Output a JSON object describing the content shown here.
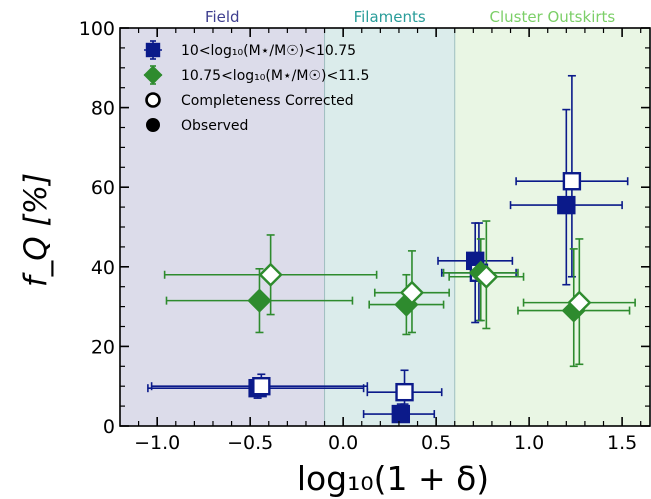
{
  "chart_data": {
    "type": "scatter",
    "xlabel": "log₁₀(1 + δ)",
    "ylabel": "f_Q [%]",
    "xlim": [
      -1.2,
      1.65
    ],
    "ylim": [
      0,
      100
    ],
    "xticks": [
      -1.0,
      -0.5,
      0.0,
      0.5,
      1.0,
      1.5
    ],
    "xtick_labels": [
      "−1.0",
      "−0.5",
      "0.0",
      "0.5",
      "1.0",
      "1.5"
    ],
    "yticks": [
      0,
      20,
      40,
      60,
      80,
      100
    ],
    "ytick_labels": [
      "0",
      "20",
      "40",
      "60",
      "80",
      "100"
    ],
    "regions": [
      {
        "label": "Field",
        "x0": -1.2,
        "x1": -0.1,
        "color": "#dcdcea",
        "label_color": "#3f3f8f"
      },
      {
        "label": "Filaments",
        "x0": -0.1,
        "x1": 0.6,
        "color": "#dbeceb",
        "label_color": "#2a9d9a"
      },
      {
        "label": "Cluster Outskirts",
        "x0": 0.6,
        "x1": 1.65,
        "color": "#e9f6e4",
        "label_color": "#7ccf68"
      }
    ],
    "series": [
      {
        "name": "10<log₁₀(M⋆/M☉)<10.75",
        "color": "#0b1a8a",
        "marker": "square",
        "observed": [
          {
            "x": -0.46,
            "y": 9.5,
            "xerr": [
              0.59,
              0.57
            ],
            "yerr": [
              2.5,
              2.5
            ]
          },
          {
            "x": 0.31,
            "y": 3.0,
            "xerr": [
              0.2,
              0.18
            ],
            "yerr": [
              1.8,
              2.5
            ]
          },
          {
            "x": 0.71,
            "y": 41.5,
            "xerr": [
              0.2,
              0.2
            ],
            "yerr": [
              15.5,
              9.5
            ]
          },
          {
            "x": 1.2,
            "y": 55.5,
            "xerr": [
              0.3,
              0.3
            ],
            "yerr": [
              20.0,
              24.0
            ]
          }
        ],
        "corrected": [
          {
            "x": -0.44,
            "y": 10.0,
            "xerr": [
              0.59,
              0.57
            ],
            "yerr": [
              2.5,
              3.0
            ]
          },
          {
            "x": 0.33,
            "y": 8.5,
            "xerr": [
              0.2,
              0.2
            ],
            "yerr": [
              3.0,
              5.5
            ]
          },
          {
            "x": 0.73,
            "y": 38.5,
            "xerr": [
              0.2,
              0.2
            ],
            "yerr": [
              12.0,
              12.5
            ]
          },
          {
            "x": 1.23,
            "y": 61.5,
            "xerr": [
              0.3,
              0.3
            ],
            "yerr": [
              24.0,
              26.5
            ]
          }
        ]
      },
      {
        "name": "10.75<log₁₀(M⋆/M☉)<11.5",
        "color": "#2e8b2e",
        "marker": "diamond",
        "observed": [
          {
            "x": -0.45,
            "y": 31.5,
            "xerr": [
              0.5,
              0.5
            ],
            "yerr": [
              8.0,
              8.0
            ]
          },
          {
            "x": 0.34,
            "y": 30.5,
            "xerr": [
              0.2,
              0.2
            ],
            "yerr": [
              7.5,
              7.5
            ]
          },
          {
            "x": 0.74,
            "y": 38.5,
            "xerr": [
              0.2,
              0.2
            ],
            "yerr": [
              12.0,
              8.5
            ]
          },
          {
            "x": 1.24,
            "y": 29.0,
            "xerr": [
              0.3,
              0.3
            ],
            "yerr": [
              14.0,
              15.5
            ]
          }
        ],
        "corrected": [
          {
            "x": -0.39,
            "y": 38.0,
            "xerr": [
              0.57,
              0.57
            ],
            "yerr": [
              10.0,
              10.0
            ]
          },
          {
            "x": 0.37,
            "y": 33.5,
            "xerr": [
              0.2,
              0.2
            ],
            "yerr": [
              10.0,
              10.5
            ]
          },
          {
            "x": 0.77,
            "y": 37.5,
            "xerr": [
              0.2,
              0.2
            ],
            "yerr": [
              13.0,
              14.0
            ]
          },
          {
            "x": 1.27,
            "y": 31.0,
            "xerr": [
              0.3,
              0.3
            ],
            "yerr": [
              15.5,
              16.0
            ]
          }
        ]
      }
    ],
    "legend": {
      "placement": "upper-left",
      "entries": [
        {
          "label": "10<log₁₀(M⋆/M☉)<10.75",
          "kind": "series-0"
        },
        {
          "label": "10.75<log₁₀(M⋆/M☉)<11.5",
          "kind": "series-1"
        },
        {
          "label": "Completeness Corrected",
          "kind": "open"
        },
        {
          "label": "Observed",
          "kind": "filled"
        }
      ]
    }
  }
}
